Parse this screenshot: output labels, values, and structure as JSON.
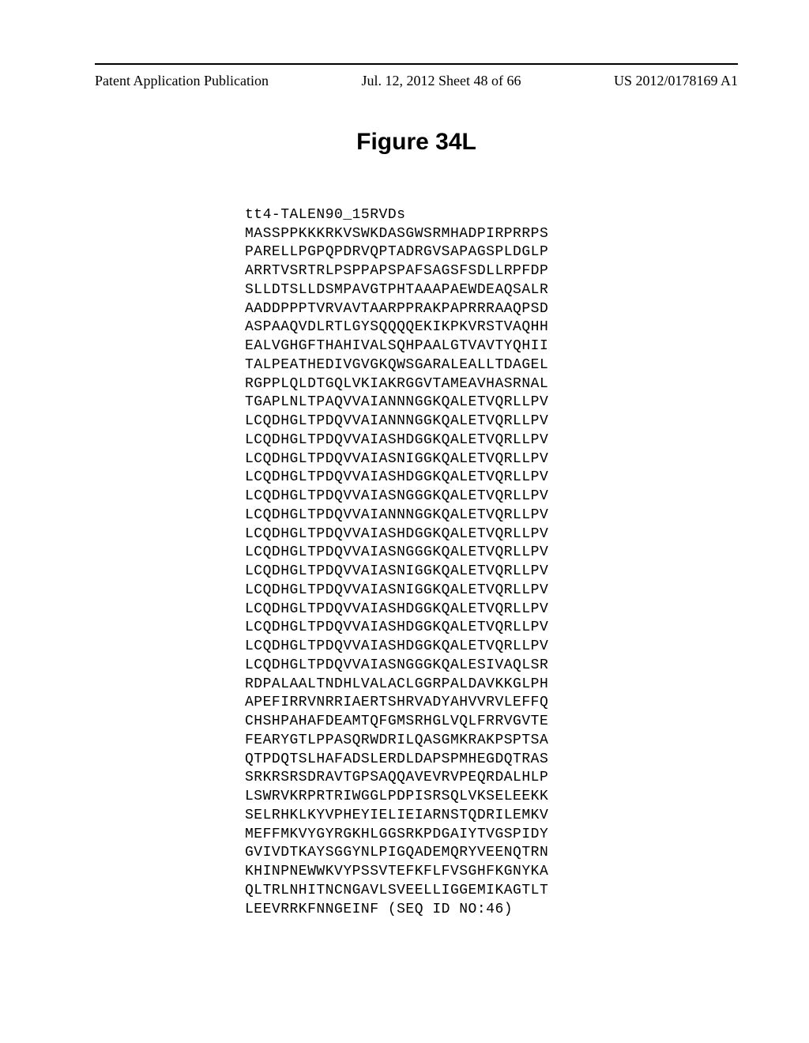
{
  "header": {
    "left": "Patent Application Publication",
    "center": "Jul. 12, 2012  Sheet 48 of 66",
    "right": "US 2012/0178169 A1"
  },
  "figure": {
    "title": "Figure 34L"
  },
  "sequence": {
    "label": "tt4-TALEN90_15RVDs",
    "lines": [
      "MASSPPKKKRKVSWKDASGWSRMHADPIRPRRPS",
      "PARELLPGPQPDRVQPTADRGVSAPAGSPLDGLP",
      "ARRTVSRTRLPSPPAPSPAFSAGSFSDLLRPFDP",
      "SLLDTSLLDSMPAVGTPHTAAAPAEWDEAQSALR",
      "AADDPPPTVRVAVTAARPPRAKPAPRRRAAQPSD",
      "ASPAAQVDLRTLGYSQQQQEKIKPKVRSTVAQHH",
      "EALVGHGFTHAHIVALSQHPAALGTVAVTYQHII",
      "TALPEATHEDIVGVGKQWSGARALEALLTDAGEL",
      "RGPPLQLDTGQLVKIAKRGGVTAMEAVHASRNAL",
      "TGAPLNLTPAQVVAIANNNGGKQALETVQRLLPV",
      "LCQDHGLTPDQVVAIANNNGGKQALETVQRLLPV",
      "LCQDHGLTPDQVVAIASHDGGKQALETVQRLLPV",
      "LCQDHGLTPDQVVAIASNIGGKQALETVQRLLPV",
      "LCQDHGLTPDQVVAIASHDGGKQALETVQRLLPV",
      "LCQDHGLTPDQVVAIASNGGGKQALETVQRLLPV",
      "LCQDHGLTPDQVVAIANNNGGKQALETVQRLLPV",
      "LCQDHGLTPDQVVAIASHDGGKQALETVQRLLPV",
      "LCQDHGLTPDQVVAIASNGGGKQALETVQRLLPV",
      "LCQDHGLTPDQVVAIASNIGGKQALETVQRLLPV",
      "LCQDHGLTPDQVVAIASNIGGKQALETVQRLLPV",
      "LCQDHGLTPDQVVAIASHDGGKQALETVQRLLPV",
      "LCQDHGLTPDQVVAIASHDGGKQALETVQRLLPV",
      "LCQDHGLTPDQVVAIASHDGGKQALETVQRLLPV",
      "LCQDHGLTPDQVVAIASNGGGKQALESIVAQLSR",
      "RDPALAALTNDHLVALACLGGRPALDAVKKGLPH",
      "APEFIRRVNRRIAERTSHRVADYAHVVRVLEFFQ",
      "CHSHPAHAFDEAMTQFGMSRHGLVQLFRRVGVTE",
      "FEARYGTLPPASQRWDRILQASGMKRAKPSPTSA",
      "QTPDQTSLHAFADSLERDLDAPSPMHEGDQTRAS",
      "SRKRSRSDRAVTGPSAQQAVEVRVPEQRDALHLP",
      "LSWRVKRPRTRIWGGLPDPISRSQLVKSELEEKK",
      "SELRHKLKYVPHEYIELIEIARNSTQDRILEMKV",
      "MEFFMKVYGYRGKHLGGSRKPDGAIYTVGSPIDY",
      "GVIVDTKAYSGGYNLPIGQADEMQRYVEENQTRN",
      "KHINPNEWWKVYPSSVTEFKFLFVSGHFKGNYKA",
      "QLTRLNHITNCNGAVLSVEELLIGGEMIKAGTLT",
      "LEEVRRKFNNGEINF (SEQ ID NO:46)"
    ]
  }
}
